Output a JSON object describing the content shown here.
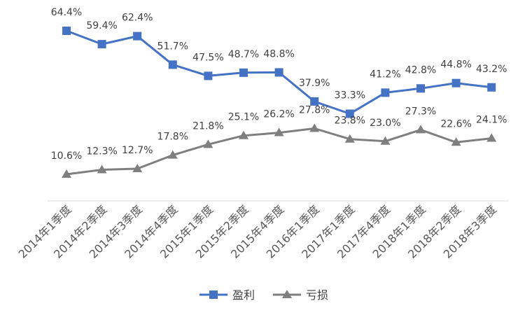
{
  "chart_data": {
    "type": "line",
    "categories": [
      "2014年1季度",
      "2014年2季度",
      "2014年3季度",
      "2014年4季度",
      "2015年1季度",
      "2015年2季度",
      "2015年4季度",
      "2016年1季度",
      "2017年1季度",
      "2017年4季度",
      "2018年1季度",
      "2018年2季度",
      "2018年3季度"
    ],
    "series": [
      {
        "name": "盈利",
        "color": "#4472c4",
        "marker": "square",
        "values": [
          64.4,
          59.4,
          62.4,
          51.7,
          47.5,
          48.7,
          48.8,
          37.9,
          33.3,
          41.2,
          42.8,
          44.8,
          43.2
        ],
        "labels": [
          "64.4%",
          "59.4%",
          "62.4%",
          "51.7%",
          "47.5%",
          "48.7%",
          "48.8%",
          "37.9%",
          "33.3%",
          "41.2%",
          "42.8%",
          "44.8%",
          "43.2%"
        ]
      },
      {
        "name": "亏损",
        "color": "#7f7f7f",
        "marker": "triangle",
        "values": [
          10.6,
          12.3,
          12.7,
          17.8,
          21.8,
          25.1,
          26.2,
          27.8,
          23.8,
          23.0,
          27.3,
          22.6,
          24.1
        ],
        "labels": [
          "10.6%",
          "12.3%",
          "12.7%",
          "17.8%",
          "21.8%",
          "25.1%",
          "26.2%",
          "27.8%",
          "23.8%",
          "23.0%",
          "27.3%",
          "22.6%",
          "24.1%"
        ]
      }
    ],
    "ylim": [
      0,
      75
    ],
    "grid": false,
    "legend_position": "bottom"
  }
}
